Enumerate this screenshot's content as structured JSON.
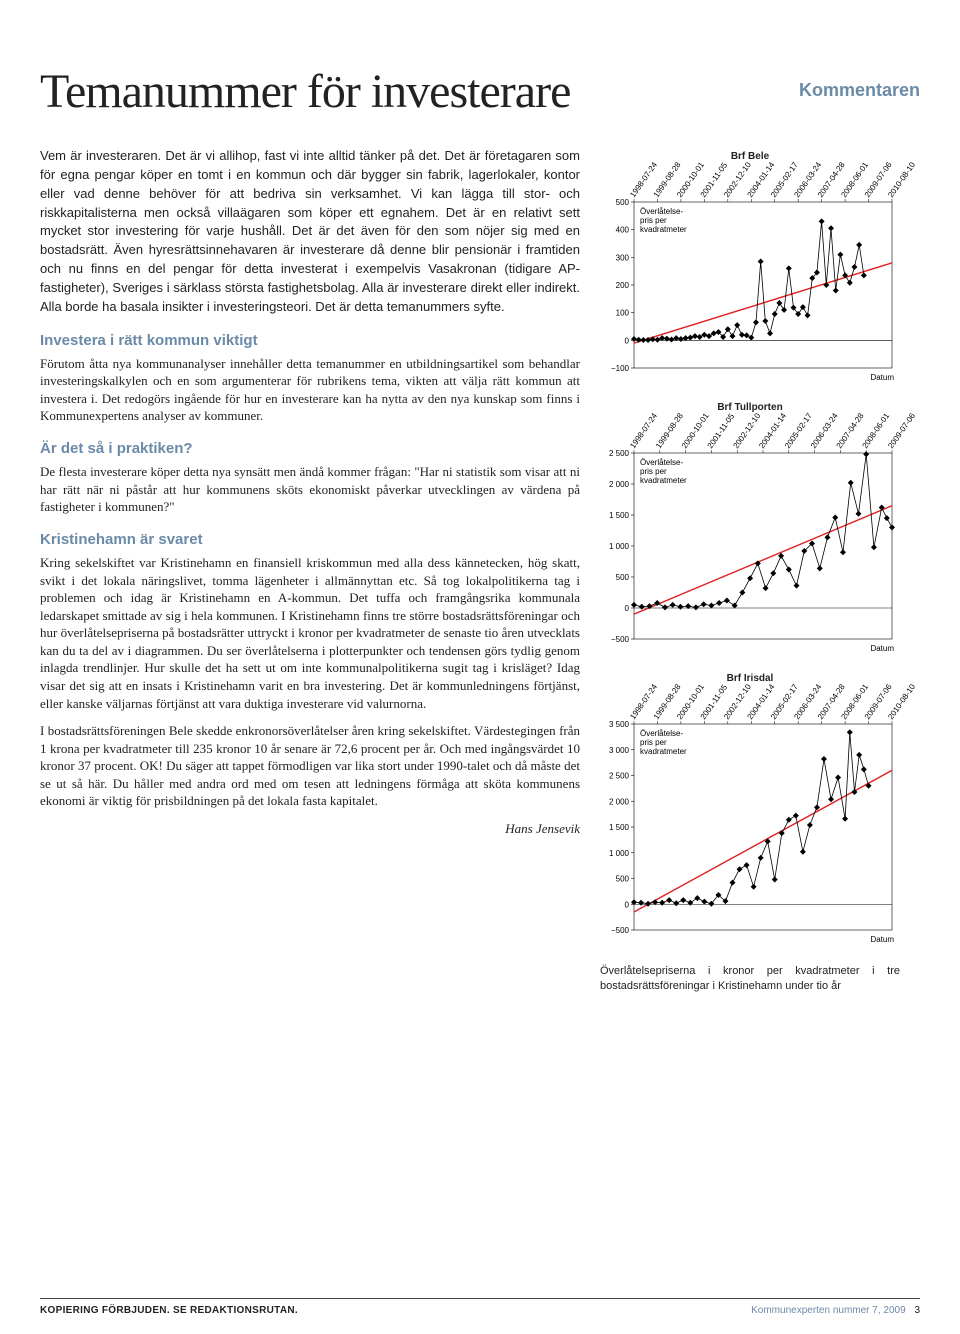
{
  "header_label": "Kommentaren",
  "title": "Temanummer för investerare",
  "intro": "Vem är investeraren. Det är vi allihop, fast vi inte alltid tänker på det. Det är företagaren som för egna pengar köper en tomt i en kommun och där bygger sin fabrik, lagerlokaler, kontor eller vad denne behöver för att bedriva sin verksamhet. Vi kan lägga till stor- och riskkapitalisterna men också villaägaren som köper ett egnahem. Det är en relativt sett mycket stor investering för varje hushåll. Det är det även för den som nöjer sig med en bostadsrätt. Även hyresrättsinnehavaren är investerare då denne blir pensionär i framtiden och nu finns en del pengar för detta investerat i exempelvis Vasakronan (tidigare AP-fastigheter), Sveriges i särklass största fastighetsbolag. Alla är investerare direkt eller indirekt. Alla borde ha basala insikter i investeringsteori. Det är detta temanummers syfte.",
  "h1": "Investera i rätt kommun viktigt",
  "p1": "Förutom åtta nya kommunanalyser innehåller detta temanummer en utbildningsartikel som behandlar investeringskalkylen och en som argumenterar för rubrikens tema, vikten att välja rätt kommun att investera i. Det redogörs ingående för hur en investerare kan ha nytta av den nya kunskap som finns i Kommunexpertens analyser av kommuner.",
  "h2": "Är det så i praktiken?",
  "p2": "De flesta investerare köper detta nya synsätt men ändå kommer frågan: \"Har ni statistik som visar att ni har rätt när ni påstår att hur kommunens sköts ekonomiskt påverkar utvecklingen av värdena på fastigheter i kommunen?\"",
  "h3": "Kristinehamn är svaret",
  "p3a": "Kring sekelskiftet var Kristinehamn en finansiell kriskommun med alla dess kännetecken, hög skatt, svikt i det lokala näringslivet, tomma lägenheter i allmännyttan etc. Så tog lokalpolitikerna tag i problemen och idag är Kristinehamn en A-kommun. Det tuffa och framgångsrika kommunala ledarskapet smittade av sig i hela kommunen. I Kristinehamn finns tre större bostadsrättsföreningar och hur överlåtelsepriserna på bostadsrätter uttryckt i kronor per kvadratmeter de senaste tio åren utvecklats kan du ta del av i diagrammen. Du ser överlåtelserna i plotterpunkter och tendensen görs tydlig genom inlagda trendlinjer. Hur skulle det ha sett ut om inte kommunalpolitikerna sugit tag i krisläget? Idag visar det sig att en insats i Kristinehamn varit en bra investering. Det är kommunledningens förtjänst, eller kanske väljarnas förtjänst att vara duktiga investerare vid valurnorna.",
  "p3b": "I bostadsrättsföreningen Bele skedde enkronorsöverlåtelser åren kring sekelskiftet. Värdestegingen från 1 krona per kvadratmeter till 235 kronor 10 år senare är 72,6 procent per år. Och med ingångsvärdet 10 kronor 37 procent. OK! Du säger att tappet förmodligen var lika stort under 1990-talet och då måste det se ut så här. Du håller med andra ord med om tesen att ledningens förmåga att sköta kommunens ekonomi är viktig för prisbildningen på det lokala fasta kapitalet.",
  "author": "Hans Jensevik",
  "caption": "Överlåtelsepriserna i kronor per kvadratmeter i tre bostadsrättsföreningar i Kristinehamn under tio år",
  "footer_left": "KOPIERING FÖRBJUDEN. SE REDAKTIONSRUTAN.",
  "footer_right": "Kommunexperten nummer 7, 2009",
  "page_number": "3",
  "charts": {
    "shared": {
      "x_dates": [
        "1998-07-24",
        "1999-08-28",
        "2000-10-01",
        "2001-11-05",
        "2002-12-10",
        "2004-01-14",
        "2005-02-17",
        "2006-03-24",
        "2007-04-28",
        "2008-06-01",
        "2009-07-06",
        "2010-08-10"
      ],
      "ylabel_lines": [
        "Överlåtelse-",
        "pris per",
        "kvadratmeter"
      ],
      "datum_label": "Datum",
      "trend_color": "#e02020",
      "point_color": "#000000",
      "line_color": "#000000",
      "grid_color": "#000000",
      "bg_color": "#ffffff",
      "marker": "diamond",
      "marker_size": 3,
      "line_width": 0.8
    },
    "bele": {
      "title": "Brf Bele",
      "ylim": [
        -100,
        500
      ],
      "ytick_step": 100,
      "trend": [
        [
          0,
          -10
        ],
        [
          11,
          280
        ]
      ],
      "points": [
        [
          0.0,
          5
        ],
        [
          0.2,
          2
        ],
        [
          0.4,
          1
        ],
        [
          0.6,
          1
        ],
        [
          0.8,
          4
        ],
        [
          1.0,
          2
        ],
        [
          1.2,
          8
        ],
        [
          1.4,
          6
        ],
        [
          1.6,
          3
        ],
        [
          1.8,
          8
        ],
        [
          2.0,
          5
        ],
        [
          2.2,
          8
        ],
        [
          2.4,
          10
        ],
        [
          2.6,
          15
        ],
        [
          2.8,
          12
        ],
        [
          3.0,
          20
        ],
        [
          3.2,
          15
        ],
        [
          3.4,
          25
        ],
        [
          3.6,
          30
        ],
        [
          3.8,
          12
        ],
        [
          4.0,
          40
        ],
        [
          4.2,
          15
        ],
        [
          4.4,
          55
        ],
        [
          4.6,
          20
        ],
        [
          4.8,
          18
        ],
        [
          5.0,
          10
        ],
        [
          5.2,
          65
        ],
        [
          5.4,
          285
        ],
        [
          5.6,
          70
        ],
        [
          5.8,
          25
        ],
        [
          6.0,
          95
        ],
        [
          6.2,
          135
        ],
        [
          6.4,
          110
        ],
        [
          6.6,
          260
        ],
        [
          6.8,
          118
        ],
        [
          7.0,
          95
        ],
        [
          7.2,
          120
        ],
        [
          7.4,
          90
        ],
        [
          7.6,
          225
        ],
        [
          7.8,
          245
        ],
        [
          8.0,
          430
        ],
        [
          8.2,
          200
        ],
        [
          8.4,
          405
        ],
        [
          8.6,
          180
        ],
        [
          8.8,
          310
        ],
        [
          9.0,
          235
        ],
        [
          9.2,
          208
        ],
        [
          9.4,
          265
        ],
        [
          9.6,
          345
        ],
        [
          9.8,
          235
        ]
      ]
    },
    "tullporten": {
      "title": "Brf Tullporten",
      "x_dates_override": [
        "1998-07-24",
        "1999-08-28",
        "2000-10-01",
        "2001-11-05",
        "2002-12-10",
        "2004-01-14",
        "2005-02-17",
        "2006-03-24",
        "2007-04-28",
        "2008-06-01",
        "2009-07-06"
      ],
      "ylim": [
        -500,
        2500
      ],
      "ytick_step": 500,
      "trend": [
        [
          0,
          -100
        ],
        [
          10,
          1650
        ]
      ],
      "points": [
        [
          0.0,
          50
        ],
        [
          0.3,
          20
        ],
        [
          0.6,
          30
        ],
        [
          0.9,
          80
        ],
        [
          1.2,
          10
        ],
        [
          1.5,
          50
        ],
        [
          1.8,
          20
        ],
        [
          2.1,
          30
        ],
        [
          2.4,
          10
        ],
        [
          2.7,
          60
        ],
        [
          3.0,
          40
        ],
        [
          3.3,
          80
        ],
        [
          3.6,
          120
        ],
        [
          3.9,
          40
        ],
        [
          4.2,
          250
        ],
        [
          4.5,
          480
        ],
        [
          4.8,
          720
        ],
        [
          5.1,
          320
        ],
        [
          5.4,
          560
        ],
        [
          5.7,
          840
        ],
        [
          6.0,
          620
        ],
        [
          6.3,
          360
        ],
        [
          6.6,
          920
        ],
        [
          6.9,
          1040
        ],
        [
          7.2,
          640
        ],
        [
          7.5,
          1140
        ],
        [
          7.8,
          1460
        ],
        [
          8.1,
          900
        ],
        [
          8.4,
          2020
        ],
        [
          8.7,
          1520
        ],
        [
          9.0,
          2480
        ],
        [
          9.3,
          980
        ],
        [
          9.6,
          1620
        ],
        [
          9.8,
          1450
        ],
        [
          10.0,
          1300
        ]
      ]
    },
    "irisdal": {
      "title": "Brf Irisdal",
      "ylim": [
        -500,
        3500
      ],
      "ytick_step": 500,
      "trend": [
        [
          0,
          -150
        ],
        [
          11,
          2600
        ]
      ],
      "points": [
        [
          0.0,
          40
        ],
        [
          0.3,
          30
        ],
        [
          0.6,
          10
        ],
        [
          0.9,
          40
        ],
        [
          1.2,
          30
        ],
        [
          1.5,
          80
        ],
        [
          1.8,
          20
        ],
        [
          2.1,
          80
        ],
        [
          2.4,
          30
        ],
        [
          2.7,
          120
        ],
        [
          3.0,
          50
        ],
        [
          3.3,
          10
        ],
        [
          3.6,
          180
        ],
        [
          3.9,
          60
        ],
        [
          4.2,
          420
        ],
        [
          4.5,
          680
        ],
        [
          4.8,
          760
        ],
        [
          5.1,
          340
        ],
        [
          5.4,
          900
        ],
        [
          5.7,
          1220
        ],
        [
          6.0,
          480
        ],
        [
          6.3,
          1380
        ],
        [
          6.6,
          1640
        ],
        [
          6.9,
          1720
        ],
        [
          7.2,
          1020
        ],
        [
          7.5,
          1540
        ],
        [
          7.8,
          1880
        ],
        [
          8.1,
          2820
        ],
        [
          8.4,
          2040
        ],
        [
          8.7,
          2460
        ],
        [
          9.0,
          1660
        ],
        [
          9.2,
          3340
        ],
        [
          9.4,
          2180
        ],
        [
          9.6,
          2900
        ],
        [
          9.8,
          2620
        ],
        [
          10.0,
          2300
        ]
      ]
    }
  }
}
